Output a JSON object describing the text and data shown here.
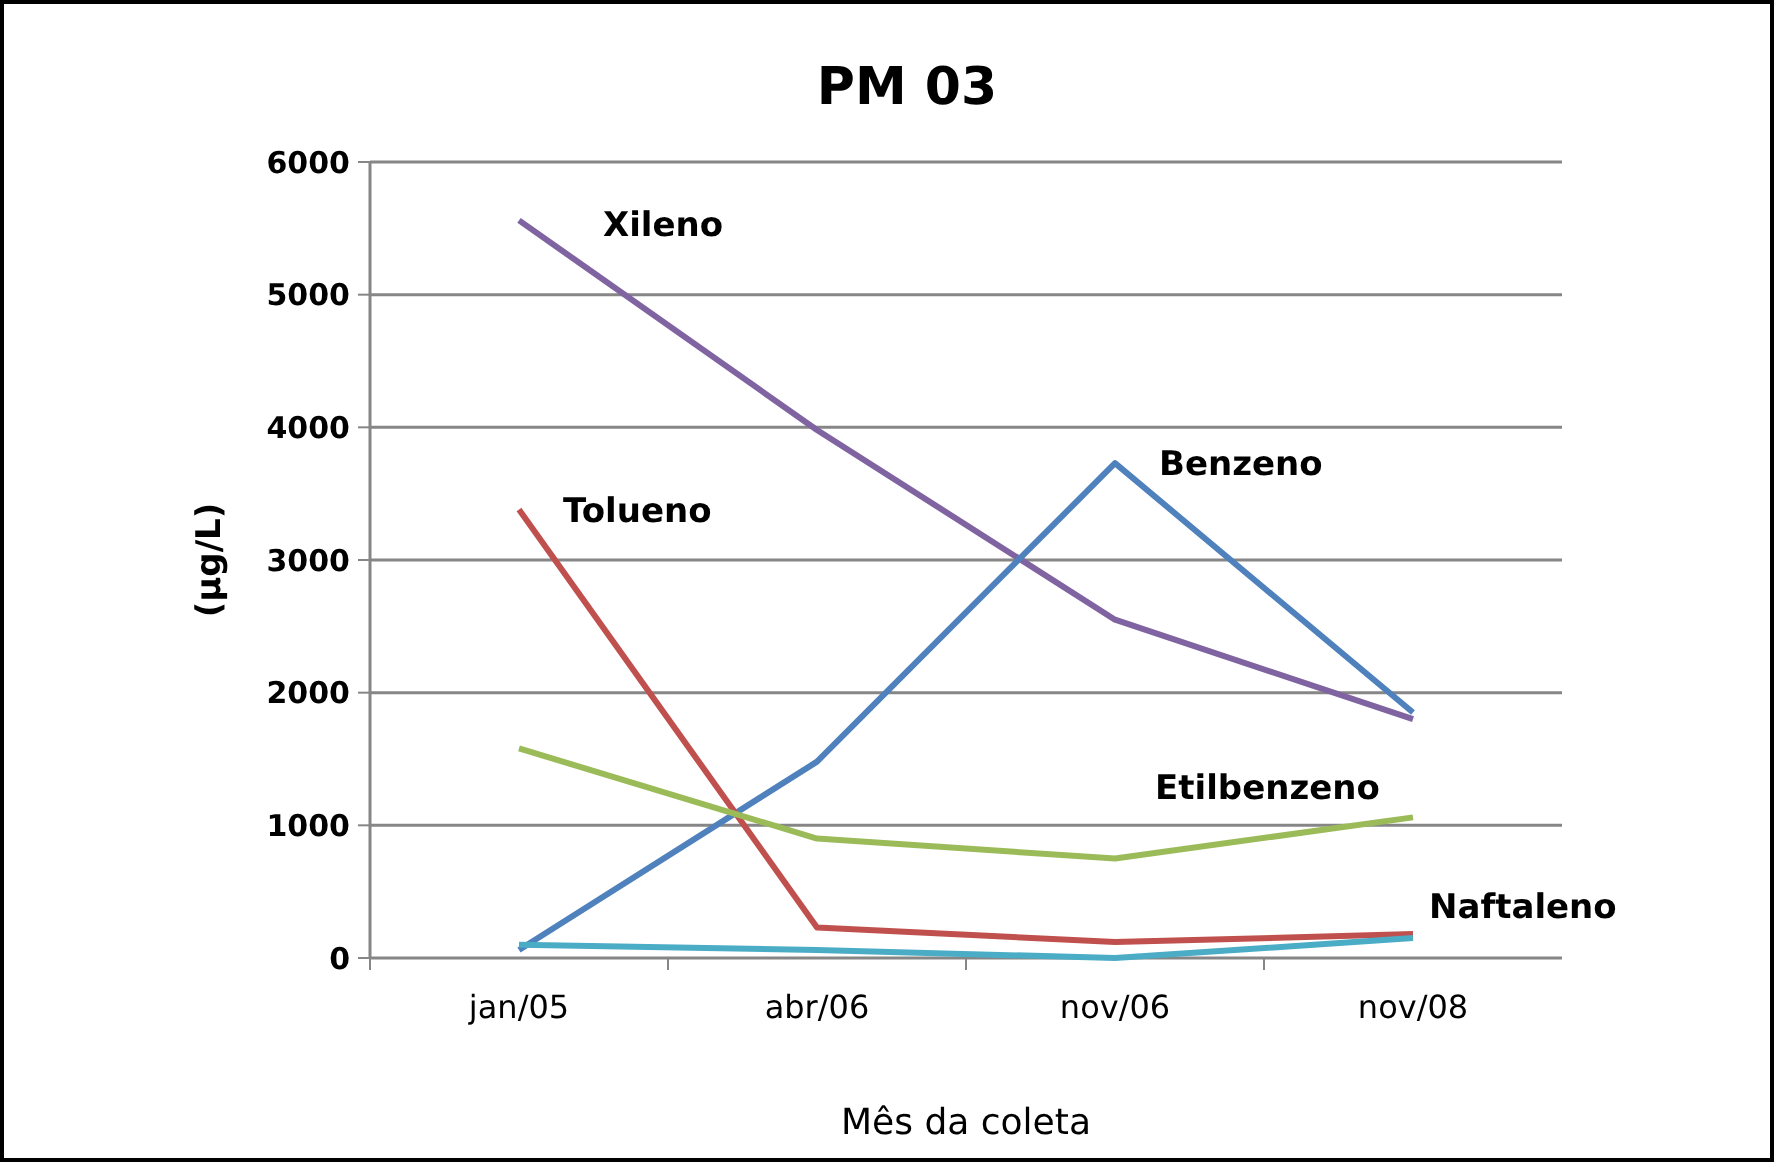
{
  "chart_data": {
    "type": "line",
    "title": "PM 03",
    "xlabel": "Mês da coleta",
    "ylabel": "(µg/L)",
    "categories": [
      "jan/05",
      "abr/06",
      "nov/06",
      "nov/08"
    ],
    "ylim": [
      0,
      6000
    ],
    "yticks": [
      0,
      1000,
      2000,
      3000,
      4000,
      5000,
      6000
    ],
    "grid": "y",
    "marker": "none",
    "line_style": "solid",
    "series": [
      {
        "name": "Xileno",
        "color": "#8064a2",
        "values": [
          5560,
          3980,
          2550,
          1800
        ]
      },
      {
        "name": "Benzeno",
        "color": "#4f81bd",
        "values": [
          60,
          1480,
          3730,
          1850
        ]
      },
      {
        "name": "Tolueno",
        "color": "#c0504d",
        "values": [
          3380,
          230,
          120,
          180
        ]
      },
      {
        "name": "Etilbenzeno",
        "color": "#9bbb59",
        "values": [
          1580,
          900,
          750,
          1060
        ]
      },
      {
        "name": "Naftaleno",
        "color": "#4bacc6",
        "values": [
          100,
          60,
          0,
          150
        ]
      }
    ]
  }
}
